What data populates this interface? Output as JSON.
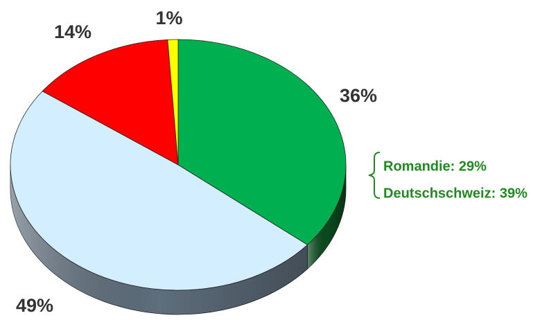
{
  "chart_data": {
    "type": "pie",
    "values": [
      36,
      49,
      14,
      1
    ],
    "value_labels": [
      "36%",
      "49%",
      "14%",
      "1%"
    ],
    "colors": [
      "#00b050",
      "#d3efff",
      "#ff0000",
      "#ffff00"
    ],
    "side_colors": [
      "#0a4a1e",
      "#5f6e7c",
      "#8a0000",
      "#8a8a00"
    ],
    "annotations": [
      "Romandie: 29%",
      "Deutschschweiz: 39%"
    ],
    "annotation_color": "#1f8a1f"
  }
}
